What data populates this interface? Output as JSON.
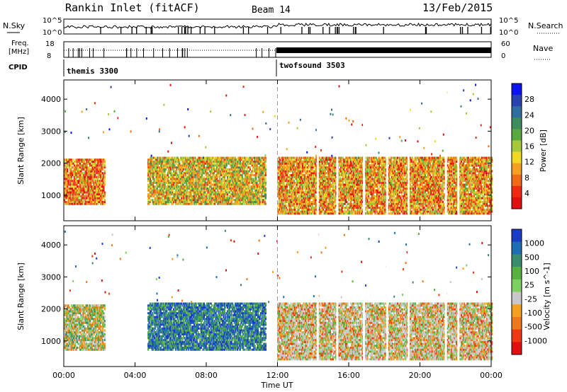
{
  "header": {
    "title": "Rankin Inlet (fitACF)",
    "beam": "Beam 14",
    "date": "13/Feb/2015"
  },
  "status_panels": {
    "nsky_label": "N.Sky",
    "nsky_ticks": [
      "10^5",
      "10^0"
    ],
    "nsearch_label": "N.Search",
    "nsearch_ticks": [
      "10^5",
      "10^0"
    ],
    "freq_label": "Freq.",
    "freq_unit": "[MHz]",
    "freq_ticks": [
      "18",
      "8"
    ],
    "nave_label": "Nave",
    "nave_ticks": [
      "60",
      "0"
    ],
    "cpid_label": "CPID",
    "cpid_segments": [
      {
        "name": "themis 3300",
        "start_hour": 0
      },
      {
        "name": "twofsound 3503",
        "start_hour": 12
      }
    ]
  },
  "chart_data": [
    {
      "type": "heatmap",
      "name": "power",
      "ylabel": "Slant Range [km]",
      "ylim": [
        200,
        4600
      ],
      "yticks": [
        1000,
        2000,
        3000,
        4000
      ],
      "xlim_hours": [
        0,
        24
      ],
      "colorbar": {
        "label": "Power [dB]",
        "ticks": [
          "4",
          "8",
          "12",
          "16",
          "20",
          "24",
          "28"
        ],
        "colors": [
          "#0a14f0",
          "#2840b0",
          "#2f6fa0",
          "#3e8c5c",
          "#5aa840",
          "#a6c83a",
          "#f0d824",
          "#f5a020",
          "#f06a18",
          "#ee2a12",
          "#e01010"
        ]
      },
      "regions": [
        {
          "t0": 0.0,
          "t1": 2.3,
          "r0": 700,
          "r1": 2100,
          "level": 0.75
        },
        {
          "t0": 4.7,
          "t1": 11.3,
          "r0": 700,
          "r1": 2200,
          "level": 0.6
        },
        {
          "t0": 12.0,
          "t1": 24.0,
          "r0": 400,
          "r1": 2200,
          "level": 0.7
        }
      ]
    },
    {
      "type": "heatmap",
      "name": "velocity",
      "ylabel": "Slant Range [km]",
      "ylim": [
        200,
        4600
      ],
      "yticks": [
        1000,
        2000,
        3000,
        4000
      ],
      "xlim_hours": [
        0,
        24
      ],
      "xticks": [
        "00:00",
        "04:00",
        "08:00",
        "12:00",
        "16:00",
        "20:00",
        "00:00"
      ],
      "xlabel": "Time UT",
      "colorbar": {
        "label": "Velocity [m s^-1]",
        "ticks": [
          "1000",
          "500",
          "100",
          "25",
          "-25",
          "-100",
          "-500",
          "-1000"
        ],
        "colors": [
          "#1a3cc8",
          "#1e6eb4",
          "#3a8c6e",
          "#58b040",
          "#7ed060",
          "#c8c8c8",
          "#f5a020",
          "#f07818",
          "#ee3a14",
          "#e01010"
        ]
      },
      "regions": [
        {
          "t0": 0.0,
          "t1": 2.3,
          "r0": 700,
          "r1": 2100,
          "mix": "green-orange"
        },
        {
          "t0": 4.7,
          "t1": 11.3,
          "r0": 700,
          "r1": 2200,
          "mix": "blue-green"
        },
        {
          "t0": 12.0,
          "t1": 24.0,
          "r0": 400,
          "r1": 2200,
          "mix": "orange-gray-green"
        }
      ]
    }
  ]
}
